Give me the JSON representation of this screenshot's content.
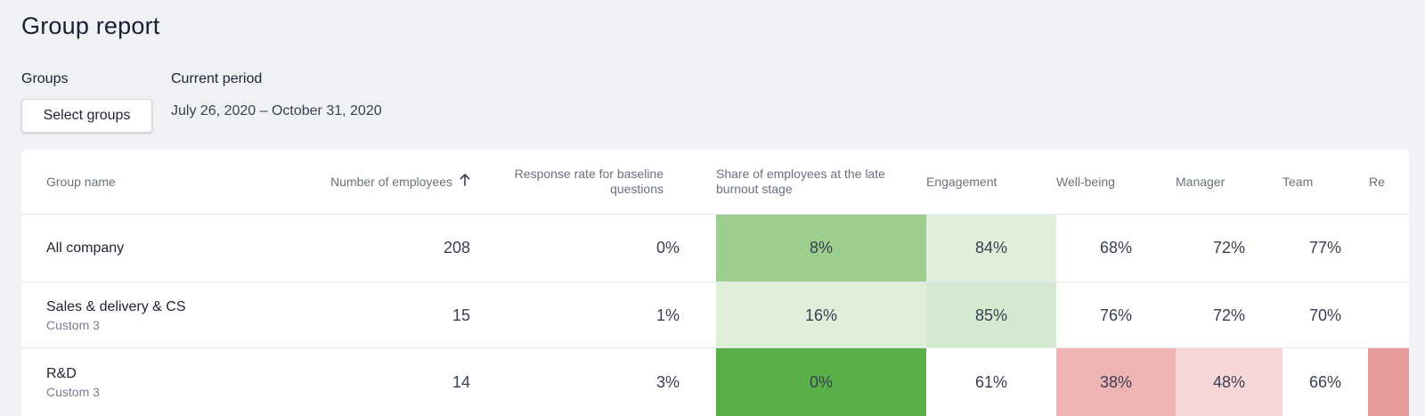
{
  "page": {
    "title": "Group report"
  },
  "filters": {
    "groups_label": "Groups",
    "select_button": "Select groups",
    "period_label": "Current period",
    "period_value": "July 26, 2020 – October 31, 2020"
  },
  "table": {
    "headers": {
      "group_name": "Group name",
      "employees": "Number of employees",
      "response_rate": "Response rate for baseline questions",
      "burnout": "Share of employees at the late burnout stage",
      "engagement": "Engagement",
      "wellbeing": "Well-being",
      "manager": "Manager",
      "team": "Team",
      "truncated": "Re"
    },
    "sort": {
      "column": "employees",
      "direction": "ascending",
      "icon": "arrow-up-icon"
    },
    "rows": [
      {
        "name": "All company",
        "type": "",
        "employees": "208",
        "response_rate": "0%",
        "burnout": "8%",
        "engagement": "84%",
        "wellbeing": "68%",
        "manager": "72%",
        "team": "77%",
        "colors": {
          "burnout": "#9ccf8e",
          "engagement": "#dff0da",
          "wellbeing": "#ffffff",
          "manager": "#ffffff",
          "team": "#ffffff",
          "truncated": "#ffffff"
        }
      },
      {
        "name": "Sales & delivery & CS",
        "type": "Custom 3",
        "employees": "15",
        "response_rate": "1%",
        "burnout": "16%",
        "engagement": "85%",
        "wellbeing": "76%",
        "manager": "72%",
        "team": "70%",
        "colors": {
          "burnout": "#dff0da",
          "engagement": "#d4ead0",
          "wellbeing": "#ffffff",
          "manager": "#ffffff",
          "team": "#ffffff",
          "truncated": "#ffffff"
        }
      },
      {
        "name": "R&D",
        "type": "Custom 3",
        "employees": "14",
        "response_rate": "3%",
        "burnout": "0%",
        "engagement": "61%",
        "wellbeing": "38%",
        "manager": "48%",
        "team": "66%",
        "colors": {
          "burnout": "#5aaf49",
          "engagement": "#ffffff",
          "wellbeing": "#eeb4b4",
          "manager": "#f7d6d8",
          "team": "#ffffff",
          "truncated": "#e89a9a"
        }
      }
    ]
  }
}
